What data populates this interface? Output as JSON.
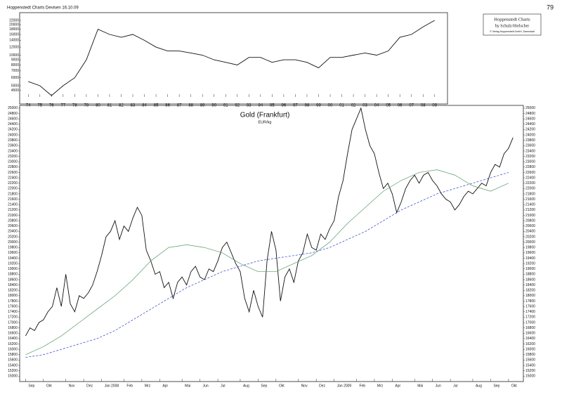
{
  "header": {
    "title": "Hoppenstedt Charts Devisen 16.10.09",
    "page": "79"
  },
  "chart_data": [
    {
      "type": "line",
      "log_y": true,
      "annotations": [
        "Hoppenstedt Charts",
        "by Schulz/Hielscher",
        "© Verlag Hoppenstedt GmbH, Darmstadt"
      ],
      "xlim": [
        1973.5,
        2009.8
      ],
      "ylim": [
        4000,
        25000
      ],
      "xticks": [
        {
          "value": 1974,
          "label": "74"
        },
        {
          "value": 1975,
          "label": "75"
        },
        {
          "value": 1976,
          "label": "76"
        },
        {
          "value": 1977,
          "label": "77"
        },
        {
          "value": 1978,
          "label": "78"
        },
        {
          "value": 1979,
          "label": "79"
        },
        {
          "value": 1980,
          "label": "80"
        },
        {
          "value": 1981,
          "label": "81"
        },
        {
          "value": 1982,
          "label": "82"
        },
        {
          "value": 1983,
          "label": "83"
        },
        {
          "value": 1984,
          "label": "84"
        },
        {
          "value": 1985,
          "label": "85"
        },
        {
          "value": 1986,
          "label": "86"
        },
        {
          "value": 1987,
          "label": "87"
        },
        {
          "value": 1988,
          "label": "88"
        },
        {
          "value": 1989,
          "label": "89"
        },
        {
          "value": 1990,
          "label": "90"
        },
        {
          "value": 1991,
          "label": "91"
        },
        {
          "value": 1992,
          "label": "92"
        },
        {
          "value": 1993,
          "label": "93"
        },
        {
          "value": 1994,
          "label": "94"
        },
        {
          "value": 1995,
          "label": "95"
        },
        {
          "value": 1996,
          "label": "96"
        },
        {
          "value": 1997,
          "label": "97"
        },
        {
          "value": 1998,
          "label": "98"
        },
        {
          "value": 1999,
          "label": "99"
        },
        {
          "value": 2000,
          "label": "00"
        },
        {
          "value": 2001,
          "label": "01"
        },
        {
          "value": 2002,
          "label": "02"
        },
        {
          "value": 2003,
          "label": "03"
        },
        {
          "value": 2004,
          "label": "04"
        },
        {
          "value": 2005,
          "label": "05"
        },
        {
          "value": 2006,
          "label": "06"
        },
        {
          "value": 2007,
          "label": "07"
        },
        {
          "value": 2008,
          "label": "08"
        },
        {
          "value": 2009,
          "label": "09"
        }
      ],
      "yticks": [
        4500,
        5000,
        6000,
        7000,
        8000,
        9000,
        10000,
        12000,
        14000,
        16000,
        18000,
        20000,
        22000
      ],
      "series": [
        {
          "color": "#111111",
          "x": [
            1974,
            1975,
            1976,
            1977,
            1978,
            1979,
            1980,
            1981,
            1982,
            1983,
            1984,
            1985,
            1986,
            1987,
            1988,
            1989,
            1990,
            1991,
            1992,
            1993,
            1994,
            1995,
            1996,
            1997,
            1998,
            1999,
            2000,
            2001,
            2002,
            2003,
            2004,
            2005,
            2006,
            2007,
            2008,
            2009
          ],
          "values": [
            5500,
            5000,
            4000,
            5000,
            6000,
            9000,
            18000,
            16000,
            15000,
            16000,
            14000,
            12000,
            11000,
            11000,
            10500,
            10000,
            9000,
            8500,
            8000,
            9500,
            9500,
            8500,
            9000,
            9000,
            8500,
            7500,
            9500,
            9500,
            10000,
            10500,
            10000,
            11000,
            15000,
            16000,
            19000,
            22000
          ]
        }
      ]
    },
    {
      "type": "line",
      "title": "Gold (Frankfurt)",
      "subtitle": "EUR/kg",
      "y_labels_both_sides": true,
      "xlim": [
        -1,
        111
      ],
      "ylim": [
        14850,
        25050
      ],
      "xticks": [
        {
          "value": 0,
          "label": "Sep"
        },
        {
          "value": 4,
          "label": "Okt"
        },
        {
          "value": 9,
          "label": "Nov"
        },
        {
          "value": 13,
          "label": "Dez"
        },
        {
          "value": 17,
          "label": "Jan 2008"
        },
        {
          "value": 22,
          "label": "Feb"
        },
        {
          "value": 26,
          "label": "Mrz"
        },
        {
          "value": 30,
          "label": "Apr"
        },
        {
          "value": 35,
          "label": "Mai"
        },
        {
          "value": 39,
          "label": "Jun"
        },
        {
          "value": 43,
          "label": "Jul"
        },
        {
          "value": 48,
          "label": "Aug"
        },
        {
          "value": 52,
          "label": "Sep"
        },
        {
          "value": 56,
          "label": "Okt"
        },
        {
          "value": 61,
          "label": "Nov"
        },
        {
          "value": 65,
          "label": "Dez"
        },
        {
          "value": 69,
          "label": "Jan 2009"
        },
        {
          "value": 74,
          "label": "Feb"
        },
        {
          "value": 78,
          "label": "Mrz"
        },
        {
          "value": 82,
          "label": "Apr"
        },
        {
          "value": 87,
          "label": "Mai"
        },
        {
          "value": 91,
          "label": "Jun"
        },
        {
          "value": 95,
          "label": "Jul"
        },
        {
          "value": 100,
          "label": "Aug"
        },
        {
          "value": 104,
          "label": "Sep"
        },
        {
          "value": 108,
          "label": "Okt"
        }
      ],
      "yticks": [
        15000,
        15200,
        15400,
        15600,
        15800,
        16000,
        16200,
        16400,
        16600,
        16800,
        17000,
        17200,
        17400,
        17600,
        17800,
        18000,
        18200,
        18400,
        18600,
        18800,
        19000,
        19200,
        19400,
        19600,
        19800,
        20000,
        20200,
        20400,
        20600,
        20800,
        21000,
        21200,
        21400,
        21600,
        21800,
        22000,
        22200,
        22400,
        22600,
        22800,
        23000,
        23200,
        23400,
        23600,
        23800,
        24000,
        24200,
        24400,
        24600,
        24800,
        25000
      ],
      "series": [
        {
          "color": "#111111",
          "x": [
            0,
            1,
            2,
            3,
            4,
            5,
            6,
            7,
            8,
            9,
            10,
            11,
            12,
            13,
            14,
            15,
            16,
            17,
            18,
            19,
            20,
            21,
            22,
            23,
            24,
            25,
            26,
            27,
            28,
            29,
            30,
            31,
            32,
            33,
            34,
            35,
            36,
            37,
            38,
            39,
            40,
            41,
            42,
            43,
            44,
            45,
            46,
            47,
            48,
            49,
            50,
            51,
            52,
            53,
            54,
            55,
            56,
            57,
            58,
            59,
            60,
            61,
            62,
            63,
            64,
            65,
            66,
            67,
            68,
            69,
            70,
            71,
            72,
            73,
            74,
            75,
            76,
            77,
            78,
            79,
            80,
            81,
            82,
            83,
            84,
            85,
            86,
            87,
            88,
            89,
            90,
            91,
            92,
            93,
            94,
            95,
            96,
            97,
            98,
            99,
            100,
            101,
            102,
            103,
            104,
            105,
            106,
            107,
            108,
            109
          ],
          "values": [
            16500,
            16800,
            16700,
            17000,
            17100,
            17400,
            17600,
            18300,
            17600,
            18800,
            17700,
            17400,
            18000,
            17900,
            18100,
            18400,
            18900,
            19500,
            20200,
            20400,
            20800,
            20100,
            20600,
            20400,
            20900,
            21300,
            21000,
            19700,
            19300,
            18800,
            18900,
            18300,
            18500,
            17900,
            18500,
            18700,
            18400,
            18900,
            19100,
            18700,
            18600,
            19000,
            18900,
            19300,
            19800,
            20000,
            19600,
            19200,
            18900,
            17900,
            17400,
            18200,
            17600,
            17200,
            19300,
            20400,
            19700,
            17800,
            18700,
            19000,
            18500,
            19300,
            19600,
            20300,
            19800,
            19700,
            20300,
            20100,
            20500,
            20800,
            21700,
            22300,
            23300,
            24200,
            24600,
            25000,
            24200,
            23600,
            23300,
            22600,
            22000,
            22200,
            21800,
            21100,
            21500,
            22000,
            22300,
            22500,
            22200,
            22500,
            22600,
            22300,
            22100,
            21800,
            21600,
            21500,
            21200,
            21400,
            21700,
            21900,
            21800,
            22000,
            22200,
            22100,
            22600,
            22900,
            22800,
            23300,
            23500,
            23900
          ]
        },
        {
          "color": "#5a9a6a",
          "x": [
            0,
            4,
            8,
            12,
            16,
            20,
            24,
            28,
            32,
            36,
            40,
            44,
            48,
            52,
            56,
            60,
            64,
            68,
            72,
            76,
            80,
            84,
            88,
            92,
            96,
            100,
            104,
            108
          ],
          "values": [
            15800,
            16100,
            16500,
            17000,
            17500,
            18000,
            18600,
            19300,
            19800,
            19900,
            19800,
            19600,
            19200,
            18900,
            18900,
            19200,
            19500,
            20000,
            20700,
            21300,
            21900,
            22300,
            22600,
            22700,
            22500,
            22100,
            21900,
            22200
          ]
        },
        {
          "color": "#2b3fc4",
          "dashed": true,
          "x": [
            0,
            4,
            8,
            12,
            16,
            20,
            24,
            28,
            32,
            36,
            40,
            44,
            48,
            52,
            56,
            60,
            64,
            68,
            72,
            76,
            80,
            84,
            88,
            92,
            96,
            100,
            104,
            108
          ],
          "values": [
            15700,
            15800,
            16000,
            16200,
            16400,
            16700,
            17100,
            17500,
            17900,
            18300,
            18600,
            18900,
            19100,
            19300,
            19400,
            19500,
            19600,
            19800,
            20100,
            20400,
            20800,
            21200,
            21500,
            21800,
            22000,
            22200,
            22400,
            22600
          ]
        }
      ]
    }
  ]
}
